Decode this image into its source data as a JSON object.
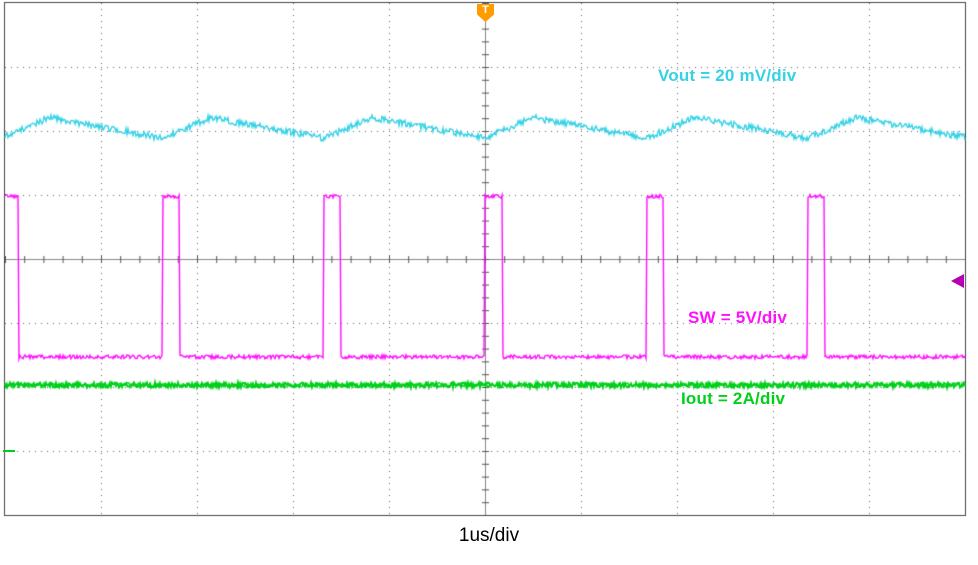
{
  "chart_data": {
    "type": "line",
    "kind": "oscilloscope-capture",
    "timebase": "1us/div",
    "grid": {
      "x_divisions": 10,
      "y_divisions": 8,
      "style": "dotted",
      "grid_color": "#666666",
      "border_color": "#444444"
    },
    "trigger": {
      "label": "T",
      "color": "#ff9c00",
      "x_div": 5
    },
    "level_marker": {
      "color": "#b400b4",
      "y_div": 4.34,
      "side": "right"
    },
    "series": [
      {
        "name": "Vout",
        "label": "Vout = 20 mV/div",
        "scale": "20 mV/div",
        "color": "#35d2e6",
        "waveform": "ripple",
        "center_div": 1.95,
        "amplitude_div": 0.16,
        "noise_div": 0.05,
        "period_div": 1.68,
        "rise_fraction": 0.3,
        "phase_anchor_div": 5
      },
      {
        "name": "SW",
        "label": "SW = 5V/div",
        "scale": "5V/div",
        "color": "#ff10ff",
        "waveform": "pulse",
        "high_div": 3.02,
        "low_div": 5.53,
        "noise_div": 0.03,
        "period_div": 1.68,
        "pulse_width_div": 0.18,
        "phase_anchor_div": 5
      },
      {
        "name": "Iout",
        "label": "Iout = 2A/div",
        "scale": "2A/div",
        "color": "#00d01a",
        "waveform": "flat",
        "center_div": 5.97,
        "noise_div": 0.04
      }
    ]
  }
}
